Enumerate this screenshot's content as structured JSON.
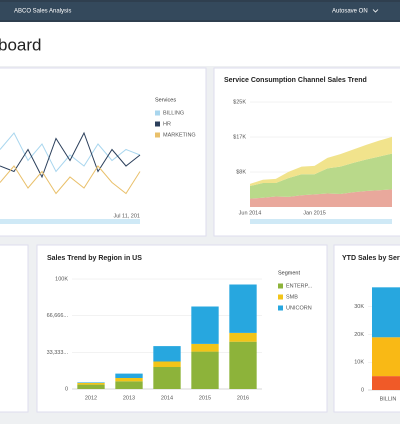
{
  "header": {
    "app": "ABCO Sales Analysis",
    "autosave": "Autosave ON"
  },
  "page_title": "board",
  "chart_data": [
    {
      "type": "line",
      "legend_title": "Services",
      "categories": [
        null,
        null,
        null,
        null,
        null,
        null,
        null,
        null,
        null,
        null,
        "Jul 11, 201"
      ],
      "ylim": [
        0,
        100
      ],
      "series": [
        {
          "name": "BILLING",
          "color": "#a9d6ee",
          "values": [
            55,
            70,
            45,
            60,
            35,
            50,
            40,
            60,
            45,
            55,
            50
          ]
        },
        {
          "name": "HR",
          "color": "#2b3f5b",
          "values": [
            40,
            35,
            55,
            30,
            65,
            45,
            70,
            35,
            55,
            40,
            50
          ]
        },
        {
          "name": "MARKETING",
          "color": "#e9c06b",
          "values": [
            25,
            40,
            20,
            35,
            15,
            30,
            20,
            40,
            25,
            15,
            35
          ]
        }
      ]
    },
    {
      "type": "area",
      "title": "Service Consumption Channel Sales Trend",
      "categories": [
        "Jun 2014",
        null,
        null,
        null,
        null,
        "Jan 2015",
        null,
        null,
        null,
        null,
        null,
        null
      ],
      "ylim": [
        0,
        25000
      ],
      "yticks": [
        {
          "value": 8333,
          "label": "$8K"
        },
        {
          "value": 16666,
          "label": "$17K"
        },
        {
          "value": 25000,
          "label": "$25K"
        }
      ],
      "grid": true,
      "series": [
        {
          "name": null,
          "color": "#e9a89c",
          "values": [
            2000,
            2200,
            2500,
            2400,
            2800,
            3000,
            3200,
            3100,
            3500,
            3800,
            4000,
            4200
          ]
        },
        {
          "name": null,
          "color": "#b9d98a",
          "values": [
            3000,
            3500,
            3200,
            4500,
            5000,
            4800,
            6000,
            6500,
            7000,
            7500,
            8000,
            8500
          ]
        },
        {
          "name": null,
          "color": "#f1e38c",
          "values": [
            500,
            800,
            1000,
            1500,
            1800,
            2000,
            2500,
            3000,
            3200,
            3500,
            3800,
            4000
          ]
        }
      ]
    },
    {
      "type": "stacked_bar",
      "title": "Sales Trend by Region in US",
      "legend_title": "Segment",
      "categories": [
        "2012",
        "2013",
        "2014",
        "2015",
        "2016"
      ],
      "ylim": [
        0,
        100000
      ],
      "yticks": [
        0,
        {
          "value": 33333,
          "label": "33,333..."
        },
        {
          "value": 66666,
          "label": "66,666..."
        },
        {
          "value": 100000,
          "label": "100K"
        }
      ],
      "grid": true,
      "series": [
        {
          "name": "ENTERP...",
          "color": "#8db33a",
          "values": [
            4000,
            7000,
            20000,
            34000,
            43000
          ]
        },
        {
          "name": "SMB",
          "color": "#f2c418",
          "values": [
            1500,
            3000,
            5000,
            7000,
            8000
          ]
        },
        {
          "name": "UNICORN",
          "color": "#27a7df",
          "values": [
            500,
            4000,
            14000,
            34000,
            44000
          ]
        }
      ]
    },
    {
      "type": "stacked_bar",
      "title": "YTD Sales by Servi",
      "categories": [
        "BILLIN"
      ],
      "ylim": [
        0,
        40000
      ],
      "yticks": [
        0,
        {
          "value": 10000,
          "label": "10K"
        },
        {
          "value": 20000,
          "label": "20K"
        },
        {
          "value": 30000,
          "label": "30K"
        }
      ],
      "grid": true,
      "series": [
        {
          "name": null,
          "color": "#f05a28",
          "values": [
            5000
          ]
        },
        {
          "name": null,
          "color": "#f9b915",
          "values": [
            14000
          ]
        },
        {
          "name": null,
          "color": "#27a7df",
          "values": [
            18000
          ]
        }
      ]
    }
  ]
}
